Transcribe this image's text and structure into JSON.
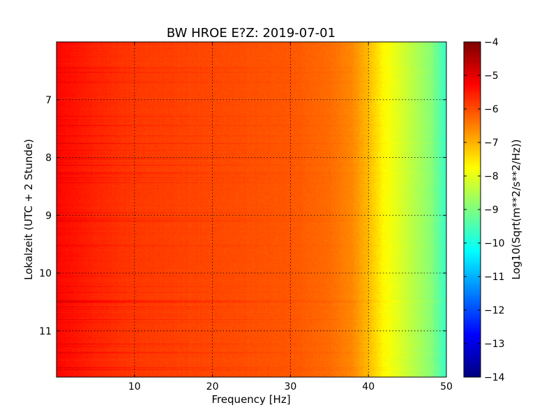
{
  "chart_data": {
    "type": "heatmap",
    "title": "BW HROE E?Z: 2019-07-01",
    "xlabel": "Frequency [Hz]",
    "ylabel": "Lokalzeit (UTC + 2 Stunde)",
    "xlim": [
      0,
      50
    ],
    "ylim": [
      6,
      11.8
    ],
    "y_inverted": true,
    "x_ticks": [
      {
        "value": 10,
        "label": "10"
      },
      {
        "value": 20,
        "label": "20"
      },
      {
        "value": 30,
        "label": "30"
      },
      {
        "value": 40,
        "label": "40"
      },
      {
        "value": 50,
        "label": "50"
      }
    ],
    "y_ticks": [
      {
        "value": 7,
        "label": "7"
      },
      {
        "value": 8,
        "label": "8"
      },
      {
        "value": 9,
        "label": "9"
      },
      {
        "value": 10,
        "label": "10"
      },
      {
        "value": 11,
        "label": "11"
      }
    ],
    "grid": true,
    "colormap": "jet",
    "colorbar": {
      "label": "Log10(Sqrt(m**2/s**2/Hz))",
      "range": [
        -14,
        -4
      ],
      "ticks": [
        {
          "value": -4,
          "label": "−4"
        },
        {
          "value": -5,
          "label": "−5"
        },
        {
          "value": -6,
          "label": "−6"
        },
        {
          "value": -7,
          "label": "−7"
        },
        {
          "value": -8,
          "label": "−8"
        },
        {
          "value": -9,
          "label": "−9"
        },
        {
          "value": -10,
          "label": "−10"
        },
        {
          "value": -11,
          "label": "−11"
        },
        {
          "value": -12,
          "label": "−12"
        },
        {
          "value": -13,
          "label": "−13"
        },
        {
          "value": -14,
          "label": "−14"
        }
      ]
    },
    "value_profile_by_frequency": [
      {
        "freq": 0,
        "value": -5.3
      },
      {
        "freq": 5,
        "value": -5.6
      },
      {
        "freq": 10,
        "value": -5.8
      },
      {
        "freq": 20,
        "value": -5.95
      },
      {
        "freq": 30,
        "value": -6.1
      },
      {
        "freq": 35,
        "value": -6.3
      },
      {
        "freq": 38,
        "value": -6.6
      },
      {
        "freq": 40,
        "value": -7.1
      },
      {
        "freq": 42,
        "value": -7.7
      },
      {
        "freq": 44,
        "value": -8.1
      },
      {
        "freq": 46,
        "value": -8.5
      },
      {
        "freq": 48,
        "value": -8.9
      },
      {
        "freq": 50,
        "value": -9.7
      }
    ]
  }
}
